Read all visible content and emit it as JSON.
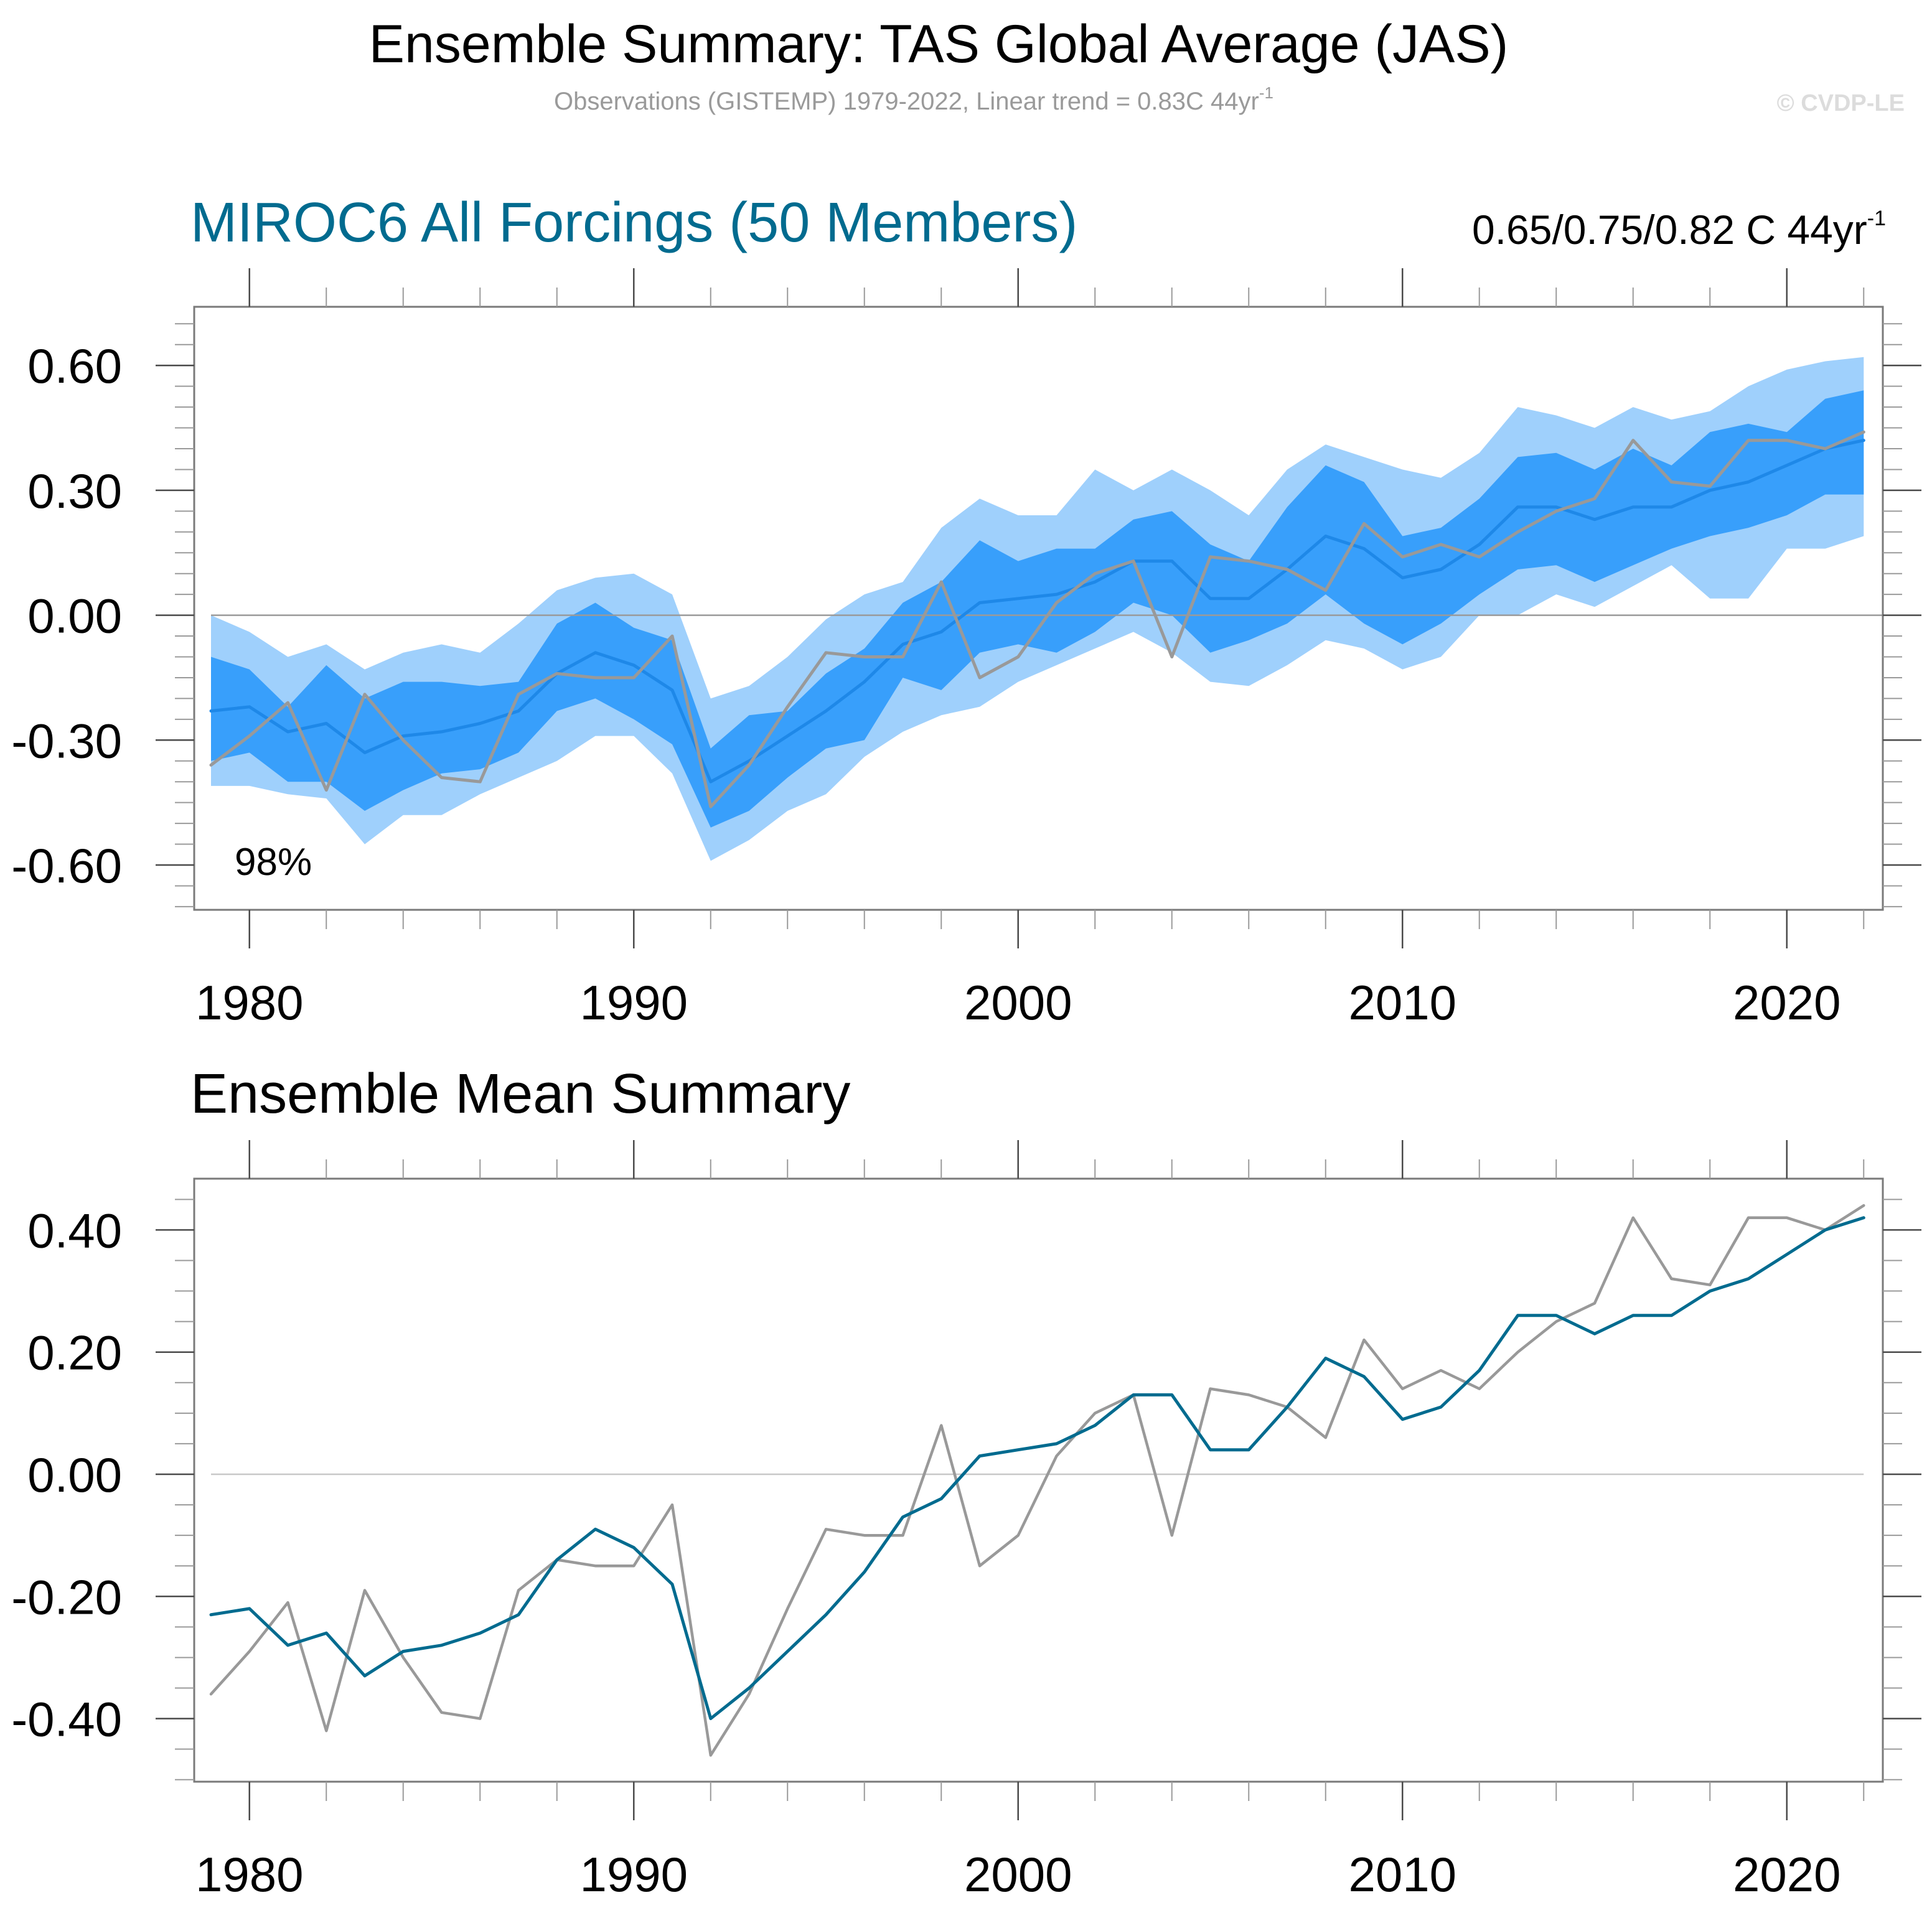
{
  "header": {
    "title": "Ensemble Summary: TAS Global Average (JAS)",
    "subtitle": "Observations (GISTEMP) 1979-2022, Linear trend = 0.83C 44yr",
    "subtitle_sup": "-1",
    "copyright": "© CVDP-LE"
  },
  "colors": {
    "outer_band": "#9fd0fc",
    "inner_band": "#389ffb",
    "ensemble_mean_top": "#1e88e8",
    "ensemble_mean_bottom": "#006b8f",
    "observations": "#999999",
    "panel_title": "#006b8f"
  },
  "chart_data": [
    {
      "type": "area",
      "title": "MIROC6 All Forcings (50 Members)",
      "trend_label": "0.65/0.75/0.82 C 44yr",
      "trend_label_sup": "-1",
      "annotation": "98%",
      "xlabel": "",
      "ylabel": "",
      "xlim": [
        1979,
        2022
      ],
      "ylim": [
        -0.71,
        0.73
      ],
      "x_ticks": [
        1980,
        1990,
        2000,
        2010,
        2020
      ],
      "x_tick_labels": [
        "1980",
        "1990",
        "2000",
        "2010",
        "2020"
      ],
      "y_ticks": [
        0.6,
        0.3,
        0.0,
        -0.3,
        -0.6
      ],
      "y_tick_labels": [
        "0.60",
        "0.30",
        "0.00",
        "-0.30",
        "-0.60"
      ],
      "grid": false,
      "zero_line": true,
      "x": [
        1979,
        1980,
        1981,
        1982,
        1983,
        1984,
        1985,
        1986,
        1987,
        1988,
        1989,
        1990,
        1991,
        1992,
        1993,
        1994,
        1995,
        1996,
        1997,
        1998,
        1999,
        2000,
        2001,
        2002,
        2003,
        2004,
        2005,
        2006,
        2007,
        2008,
        2009,
        2010,
        2011,
        2012,
        2013,
        2014,
        2015,
        2016,
        2017,
        2018,
        2019,
        2020,
        2021,
        2022
      ],
      "series": [
        {
          "name": "Ensemble range upper (outer)",
          "values": [
            0.0,
            -0.04,
            -0.1,
            -0.07,
            -0.13,
            -0.09,
            -0.07,
            -0.09,
            -0.02,
            0.06,
            0.09,
            0.1,
            0.05,
            -0.2,
            -0.17,
            -0.1,
            -0.01,
            0.05,
            0.08,
            0.21,
            0.28,
            0.24,
            0.24,
            0.35,
            0.3,
            0.35,
            0.3,
            0.24,
            0.35,
            0.41,
            0.38,
            0.35,
            0.33,
            0.39,
            0.5,
            0.48,
            0.45,
            0.5,
            0.47,
            0.49,
            0.55,
            0.59,
            0.61,
            0.62
          ]
        },
        {
          "name": "Ensemble upper (inner)",
          "values": [
            -0.1,
            -0.13,
            -0.22,
            -0.12,
            -0.2,
            -0.16,
            -0.16,
            -0.17,
            -0.16,
            -0.02,
            0.03,
            -0.03,
            -0.06,
            -0.32,
            -0.24,
            -0.23,
            -0.14,
            -0.08,
            0.03,
            0.08,
            0.18,
            0.13,
            0.16,
            0.16,
            0.23,
            0.25,
            0.17,
            0.13,
            0.26,
            0.36,
            0.32,
            0.19,
            0.21,
            0.28,
            0.38,
            0.39,
            0.35,
            0.4,
            0.36,
            0.44,
            0.46,
            0.44,
            0.52,
            0.54
          ]
        },
        {
          "name": "Ensemble mean",
          "values": [
            -0.23,
            -0.22,
            -0.28,
            -0.26,
            -0.33,
            -0.29,
            -0.28,
            -0.26,
            -0.23,
            -0.14,
            -0.09,
            -0.12,
            -0.18,
            -0.4,
            -0.35,
            -0.29,
            -0.23,
            -0.16,
            -0.07,
            -0.04,
            0.03,
            0.04,
            0.05,
            0.08,
            0.13,
            0.13,
            0.04,
            0.04,
            0.11,
            0.19,
            0.16,
            0.09,
            0.11,
            0.17,
            0.26,
            0.26,
            0.23,
            0.26,
            0.26,
            0.3,
            0.32,
            0.36,
            0.4,
            0.42
          ]
        },
        {
          "name": "Ensemble lower (inner)",
          "values": [
            -0.35,
            -0.33,
            -0.4,
            -0.4,
            -0.47,
            -0.42,
            -0.38,
            -0.37,
            -0.33,
            -0.23,
            -0.2,
            -0.25,
            -0.31,
            -0.51,
            -0.47,
            -0.39,
            -0.32,
            -0.3,
            -0.15,
            -0.18,
            -0.09,
            -0.07,
            -0.09,
            -0.04,
            0.03,
            0.0,
            -0.09,
            -0.06,
            -0.02,
            0.05,
            -0.02,
            -0.07,
            -0.02,
            0.05,
            0.11,
            0.12,
            0.08,
            0.12,
            0.16,
            0.19,
            0.21,
            0.24,
            0.29,
            0.29
          ]
        },
        {
          "name": "Ensemble range lower (outer)",
          "values": [
            -0.41,
            -0.41,
            -0.43,
            -0.44,
            -0.55,
            -0.48,
            -0.48,
            -0.43,
            -0.39,
            -0.35,
            -0.29,
            -0.29,
            -0.38,
            -0.59,
            -0.54,
            -0.47,
            -0.43,
            -0.34,
            -0.28,
            -0.24,
            -0.22,
            -0.16,
            -0.12,
            -0.08,
            -0.04,
            -0.09,
            -0.16,
            -0.17,
            -0.12,
            -0.06,
            -0.08,
            -0.13,
            -0.1,
            0.0,
            0.0,
            0.05,
            0.02,
            0.07,
            0.12,
            0.04,
            0.04,
            0.16,
            0.16,
            0.19
          ]
        },
        {
          "name": "Observations (GISTEMP)",
          "values": [
            -0.36,
            -0.29,
            -0.21,
            -0.42,
            -0.19,
            -0.3,
            -0.39,
            -0.4,
            -0.19,
            -0.14,
            -0.15,
            -0.15,
            -0.05,
            -0.46,
            -0.36,
            -0.22,
            -0.09,
            -0.1,
            -0.1,
            0.08,
            -0.15,
            -0.1,
            0.03,
            0.1,
            0.13,
            -0.1,
            0.14,
            0.13,
            0.11,
            0.06,
            0.22,
            0.14,
            0.17,
            0.14,
            0.2,
            0.25,
            0.28,
            0.42,
            0.32,
            0.31,
            0.42,
            0.42,
            0.4,
            0.44
          ]
        }
      ]
    },
    {
      "type": "line",
      "title": "Ensemble Mean Summary",
      "xlabel": "",
      "ylabel": "",
      "xlim": [
        1979,
        2022
      ],
      "ylim": [
        -0.5,
        0.48
      ],
      "x_ticks": [
        1980,
        1990,
        2000,
        2010,
        2020
      ],
      "x_tick_labels": [
        "1980",
        "1990",
        "2000",
        "2010",
        "2020"
      ],
      "y_ticks": [
        0.4,
        0.2,
        0.0,
        -0.2,
        -0.4
      ],
      "y_tick_labels": [
        "0.40",
        "0.20",
        "0.00",
        "-0.20",
        "-0.40"
      ],
      "grid": false,
      "zero_line": true,
      "x": [
        1979,
        1980,
        1981,
        1982,
        1983,
        1984,
        1985,
        1986,
        1987,
        1988,
        1989,
        1990,
        1991,
        1992,
        1993,
        1994,
        1995,
        1996,
        1997,
        1998,
        1999,
        2000,
        2001,
        2002,
        2003,
        2004,
        2005,
        2006,
        2007,
        2008,
        2009,
        2010,
        2011,
        2012,
        2013,
        2014,
        2015,
        2016,
        2017,
        2018,
        2019,
        2020,
        2021,
        2022
      ],
      "series": [
        {
          "name": "Ensemble mean",
          "values": [
            -0.23,
            -0.22,
            -0.28,
            -0.26,
            -0.33,
            -0.29,
            -0.28,
            -0.26,
            -0.23,
            -0.14,
            -0.09,
            -0.12,
            -0.18,
            -0.4,
            -0.35,
            -0.29,
            -0.23,
            -0.16,
            -0.07,
            -0.04,
            0.03,
            0.04,
            0.05,
            0.08,
            0.13,
            0.13,
            0.04,
            0.04,
            0.11,
            0.19,
            0.16,
            0.09,
            0.11,
            0.17,
            0.26,
            0.26,
            0.23,
            0.26,
            0.26,
            0.3,
            0.32,
            0.36,
            0.4,
            0.42
          ]
        },
        {
          "name": "Observations (GISTEMP)",
          "values": [
            -0.36,
            -0.29,
            -0.21,
            -0.42,
            -0.19,
            -0.3,
            -0.39,
            -0.4,
            -0.19,
            -0.14,
            -0.15,
            -0.15,
            -0.05,
            -0.46,
            -0.36,
            -0.22,
            -0.09,
            -0.1,
            -0.1,
            0.08,
            -0.15,
            -0.1,
            0.03,
            0.1,
            0.13,
            -0.1,
            0.14,
            0.13,
            0.11,
            0.06,
            0.22,
            0.14,
            0.17,
            0.14,
            0.2,
            0.25,
            0.28,
            0.42,
            0.32,
            0.31,
            0.42,
            0.42,
            0.4,
            0.44
          ]
        }
      ]
    }
  ]
}
